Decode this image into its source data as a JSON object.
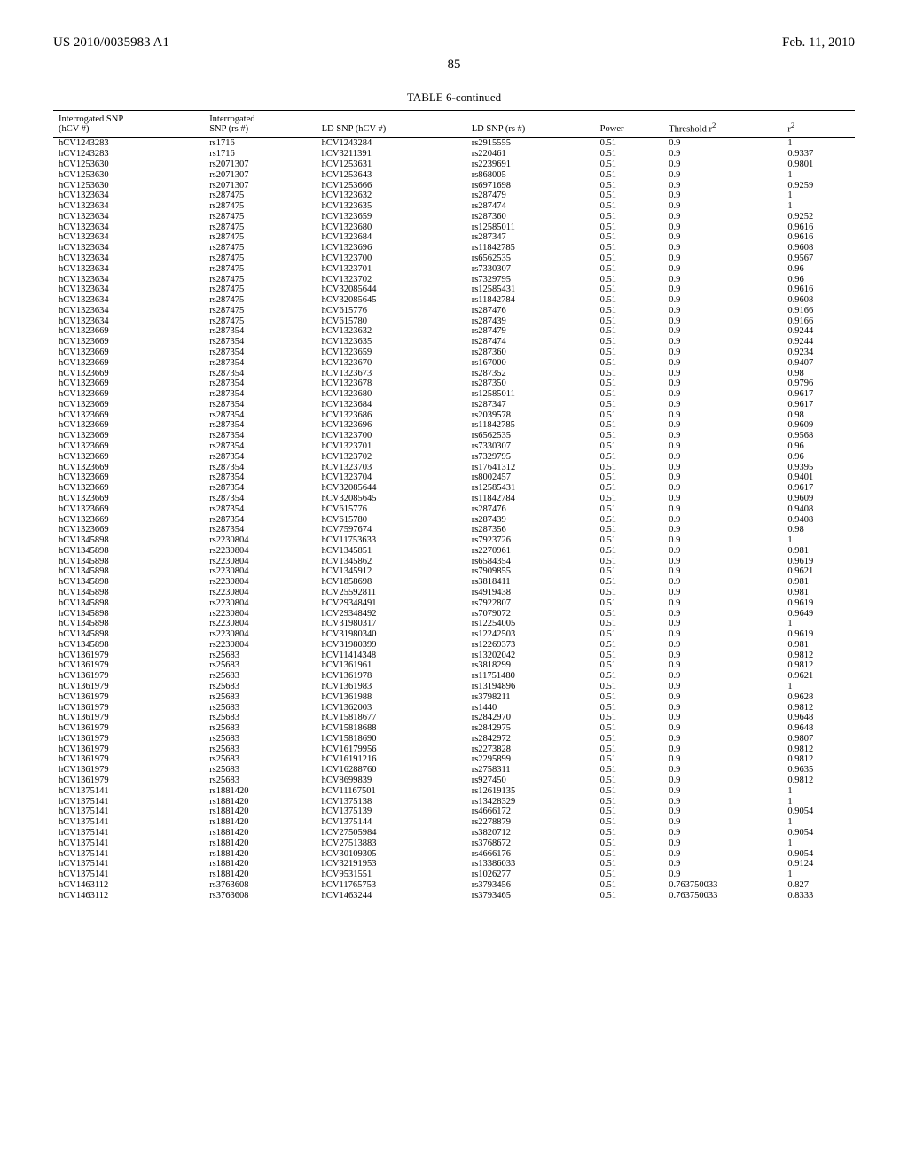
{
  "header": {
    "pub_number": "US 2010/0035983 A1",
    "pub_date": "Feb. 11, 2010"
  },
  "page_number": "85",
  "table": {
    "title": "TABLE 6-continued",
    "columns": [
      "Interrogated SNP\n(hCV #)",
      "Interrogated\nSNP (rs #)",
      "LD SNP (hCV #)",
      "LD SNP (rs #)",
      "Power",
      "Threshold r²",
      "r²"
    ],
    "rows": [
      [
        "hCV1243283",
        "rs1716",
        "hCV1243284",
        "rs2915555",
        "0.51",
        "0.9",
        "1"
      ],
      [
        "hCV1243283",
        "rs1716",
        "hCV3211391",
        "rs220461",
        "0.51",
        "0.9",
        "0.9337"
      ],
      [
        "hCV1253630",
        "rs2071307",
        "hCV1253631",
        "rs2239691",
        "0.51",
        "0.9",
        "0.9801"
      ],
      [
        "hCV1253630",
        "rs2071307",
        "hCV1253643",
        "rs868005",
        "0.51",
        "0.9",
        "1"
      ],
      [
        "hCV1253630",
        "rs2071307",
        "hCV1253666",
        "rs6971698",
        "0.51",
        "0.9",
        "0.9259"
      ],
      [
        "hCV1323634",
        "rs287475",
        "hCV1323632",
        "rs287479",
        "0.51",
        "0.9",
        "1"
      ],
      [
        "hCV1323634",
        "rs287475",
        "hCV1323635",
        "rs287474",
        "0.51",
        "0.9",
        "1"
      ],
      [
        "hCV1323634",
        "rs287475",
        "hCV1323659",
        "rs287360",
        "0.51",
        "0.9",
        "0.9252"
      ],
      [
        "hCV1323634",
        "rs287475",
        "hCV1323680",
        "rs12585011",
        "0.51",
        "0.9",
        "0.9616"
      ],
      [
        "hCV1323634",
        "rs287475",
        "hCV1323684",
        "rs287347",
        "0.51",
        "0.9",
        "0.9616"
      ],
      [
        "hCV1323634",
        "rs287475",
        "hCV1323696",
        "rs11842785",
        "0.51",
        "0.9",
        "0.9608"
      ],
      [
        "hCV1323634",
        "rs287475",
        "hCV1323700",
        "rs6562535",
        "0.51",
        "0.9",
        "0.9567"
      ],
      [
        "hCV1323634",
        "rs287475",
        "hCV1323701",
        "rs7330307",
        "0.51",
        "0.9",
        "0.96"
      ],
      [
        "hCV1323634",
        "rs287475",
        "hCV1323702",
        "rs7329795",
        "0.51",
        "0.9",
        "0.96"
      ],
      [
        "hCV1323634",
        "rs287475",
        "hCV32085644",
        "rs12585431",
        "0.51",
        "0.9",
        "0.9616"
      ],
      [
        "hCV1323634",
        "rs287475",
        "hCV32085645",
        "rs11842784",
        "0.51",
        "0.9",
        "0.9608"
      ],
      [
        "hCV1323634",
        "rs287475",
        "hCV615776",
        "rs287476",
        "0.51",
        "0.9",
        "0.9166"
      ],
      [
        "hCV1323634",
        "rs287475",
        "hCV615780",
        "rs287439",
        "0.51",
        "0.9",
        "0.9166"
      ],
      [
        "hCV1323669",
        "rs287354",
        "hCV1323632",
        "rs287479",
        "0.51",
        "0.9",
        "0.9244"
      ],
      [
        "hCV1323669",
        "rs287354",
        "hCV1323635",
        "rs287474",
        "0.51",
        "0.9",
        "0.9244"
      ],
      [
        "hCV1323669",
        "rs287354",
        "hCV1323659",
        "rs287360",
        "0.51",
        "0.9",
        "0.9234"
      ],
      [
        "hCV1323669",
        "rs287354",
        "hCV1323670",
        "rs167000",
        "0.51",
        "0.9",
        "0.9407"
      ],
      [
        "hCV1323669",
        "rs287354",
        "hCV1323673",
        "rs287352",
        "0.51",
        "0.9",
        "0.98"
      ],
      [
        "hCV1323669",
        "rs287354",
        "hCV1323678",
        "rs287350",
        "0.51",
        "0.9",
        "0.9796"
      ],
      [
        "hCV1323669",
        "rs287354",
        "hCV1323680",
        "rs12585011",
        "0.51",
        "0.9",
        "0.9617"
      ],
      [
        "hCV1323669",
        "rs287354",
        "hCV1323684",
        "rs287347",
        "0.51",
        "0.9",
        "0.9617"
      ],
      [
        "hCV1323669",
        "rs287354",
        "hCV1323686",
        "rs2039578",
        "0.51",
        "0.9",
        "0.98"
      ],
      [
        "hCV1323669",
        "rs287354",
        "hCV1323696",
        "rs11842785",
        "0.51",
        "0.9",
        "0.9609"
      ],
      [
        "hCV1323669",
        "rs287354",
        "hCV1323700",
        "rs6562535",
        "0.51",
        "0.9",
        "0.9568"
      ],
      [
        "hCV1323669",
        "rs287354",
        "hCV1323701",
        "rs7330307",
        "0.51",
        "0.9",
        "0.96"
      ],
      [
        "hCV1323669",
        "rs287354",
        "hCV1323702",
        "rs7329795",
        "0.51",
        "0.9",
        "0.96"
      ],
      [
        "hCV1323669",
        "rs287354",
        "hCV1323703",
        "rs17641312",
        "0.51",
        "0.9",
        "0.9395"
      ],
      [
        "hCV1323669",
        "rs287354",
        "hCV1323704",
        "rs8002457",
        "0.51",
        "0.9",
        "0.9401"
      ],
      [
        "hCV1323669",
        "rs287354",
        "hCV32085644",
        "rs12585431",
        "0.51",
        "0.9",
        "0.9617"
      ],
      [
        "hCV1323669",
        "rs287354",
        "hCV32085645",
        "rs11842784",
        "0.51",
        "0.9",
        "0.9609"
      ],
      [
        "hCV1323669",
        "rs287354",
        "hCV615776",
        "rs287476",
        "0.51",
        "0.9",
        "0.9408"
      ],
      [
        "hCV1323669",
        "rs287354",
        "hCV615780",
        "rs287439",
        "0.51",
        "0.9",
        "0.9408"
      ],
      [
        "hCV1323669",
        "rs287354",
        "hCV7597674",
        "rs287356",
        "0.51",
        "0.9",
        "0.98"
      ],
      [
        "hCV1345898",
        "rs2230804",
        "hCV11753633",
        "rs7923726",
        "0.51",
        "0.9",
        "1"
      ],
      [
        "hCV1345898",
        "rs2230804",
        "hCV1345851",
        "rs2270961",
        "0.51",
        "0.9",
        "0.981"
      ],
      [
        "hCV1345898",
        "rs2230804",
        "hCV1345862",
        "rs6584354",
        "0.51",
        "0.9",
        "0.9619"
      ],
      [
        "hCV1345898",
        "rs2230804",
        "hCV1345912",
        "rs7909855",
        "0.51",
        "0.9",
        "0.9621"
      ],
      [
        "hCV1345898",
        "rs2230804",
        "hCV1858698",
        "rs3818411",
        "0.51",
        "0.9",
        "0.981"
      ],
      [
        "hCV1345898",
        "rs2230804",
        "hCV25592811",
        "rs4919438",
        "0.51",
        "0.9",
        "0.981"
      ],
      [
        "hCV1345898",
        "rs2230804",
        "hCV29348491",
        "rs7922807",
        "0.51",
        "0.9",
        "0.9619"
      ],
      [
        "hCV1345898",
        "rs2230804",
        "hCV29348492",
        "rs7079072",
        "0.51",
        "0.9",
        "0.9649"
      ],
      [
        "hCV1345898",
        "rs2230804",
        "hCV31980317",
        "rs12254005",
        "0.51",
        "0.9",
        "1"
      ],
      [
        "hCV1345898",
        "rs2230804",
        "hCV31980340",
        "rs12242503",
        "0.51",
        "0.9",
        "0.9619"
      ],
      [
        "hCV1345898",
        "rs2230804",
        "hCV31980399",
        "rs12269373",
        "0.51",
        "0.9",
        "0.981"
      ],
      [
        "hCV1361979",
        "rs25683",
        "hCV11414348",
        "rs13202042",
        "0.51",
        "0.9",
        "0.9812"
      ],
      [
        "hCV1361979",
        "rs25683",
        "hCV1361961",
        "rs3818299",
        "0.51",
        "0.9",
        "0.9812"
      ],
      [
        "hCV1361979",
        "rs25683",
        "hCV1361978",
        "rs11751480",
        "0.51",
        "0.9",
        "0.9621"
      ],
      [
        "hCV1361979",
        "rs25683",
        "hCV1361983",
        "rs13194896",
        "0.51",
        "0.9",
        "1"
      ],
      [
        "hCV1361979",
        "rs25683",
        "hCV1361988",
        "rs3798211",
        "0.51",
        "0.9",
        "0.9628"
      ],
      [
        "hCV1361979",
        "rs25683",
        "hCV1362003",
        "rs1440",
        "0.51",
        "0.9",
        "0.9812"
      ],
      [
        "hCV1361979",
        "rs25683",
        "hCV15818677",
        "rs2842970",
        "0.51",
        "0.9",
        "0.9648"
      ],
      [
        "hCV1361979",
        "rs25683",
        "hCV15818688",
        "rs2842975",
        "0.51",
        "0.9",
        "0.9648"
      ],
      [
        "hCV1361979",
        "rs25683",
        "hCV15818690",
        "rs2842972",
        "0.51",
        "0.9",
        "0.9807"
      ],
      [
        "hCV1361979",
        "rs25683",
        "hCV16179956",
        "rs2273828",
        "0.51",
        "0.9",
        "0.9812"
      ],
      [
        "hCV1361979",
        "rs25683",
        "hCV16191216",
        "rs2295899",
        "0.51",
        "0.9",
        "0.9812"
      ],
      [
        "hCV1361979",
        "rs25683",
        "hCV16288760",
        "rs2758311",
        "0.51",
        "0.9",
        "0.9635"
      ],
      [
        "hCV1361979",
        "rs25683",
        "hCV8699839",
        "rs927450",
        "0.51",
        "0.9",
        "0.9812"
      ],
      [
        "hCV1375141",
        "rs1881420",
        "hCV11167501",
        "rs12619135",
        "0.51",
        "0.9",
        "1"
      ],
      [
        "hCV1375141",
        "rs1881420",
        "hCV1375138",
        "rs13428329",
        "0.51",
        "0.9",
        "1"
      ],
      [
        "hCV1375141",
        "rs1881420",
        "hCV1375139",
        "rs4666172",
        "0.51",
        "0.9",
        "0.9054"
      ],
      [
        "hCV1375141",
        "rs1881420",
        "hCV1375144",
        "rs2278879",
        "0.51",
        "0.9",
        "1"
      ],
      [
        "hCV1375141",
        "rs1881420",
        "hCV27505984",
        "rs3820712",
        "0.51",
        "0.9",
        "0.9054"
      ],
      [
        "hCV1375141",
        "rs1881420",
        "hCV27513883",
        "rs3768672",
        "0.51",
        "0.9",
        "1"
      ],
      [
        "hCV1375141",
        "rs1881420",
        "hCV30109305",
        "rs4666176",
        "0.51",
        "0.9",
        "0.9054"
      ],
      [
        "hCV1375141",
        "rs1881420",
        "hCV32191953",
        "rs13386033",
        "0.51",
        "0.9",
        "0.9124"
      ],
      [
        "hCV1375141",
        "rs1881420",
        "hCV9531551",
        "rs1026277",
        "0.51",
        "0.9",
        "1"
      ],
      [
        "hCV1463112",
        "rs3763608",
        "hCV11765753",
        "rs3793456",
        "0.51",
        "0.763750033",
        "0.827"
      ],
      [
        "hCV1463112",
        "rs3763608",
        "hCV1463244",
        "rs3793465",
        "0.51",
        "0.763750033",
        "0.8333"
      ]
    ]
  }
}
